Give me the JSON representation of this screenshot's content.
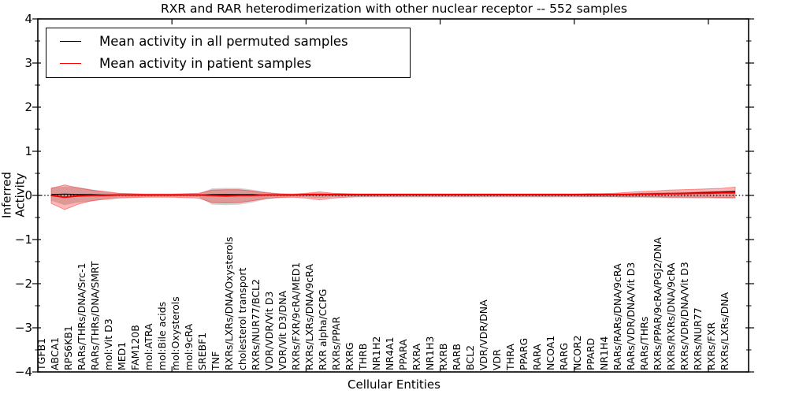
{
  "figure": {
    "title": "RXR and RAR heterodimerization with other nuclear receptor -- 552 samples",
    "xlabel": "Cellular Entities",
    "ylabel": "Inferred Activity"
  },
  "legend": {
    "items": [
      {
        "label": "Mean activity in all permuted samples",
        "color": "#000000"
      },
      {
        "label": "Mean activity in patient samples",
        "color": "#ff0000"
      }
    ]
  },
  "chart_data": {
    "type": "line",
    "title": "RXR and RAR heterodimerization with other nuclear receptor -- 552 samples",
    "xlabel": "Cellular Entities",
    "ylabel": "Inferred Activity",
    "ylim": [
      -4,
      4
    ],
    "yticks": [
      4,
      3,
      2,
      1,
      0,
      -1,
      -2,
      -3,
      -4
    ],
    "ytick_labels": [
      "4",
      "3",
      "2",
      "1",
      "0",
      "−1",
      "−2",
      "−3",
      "−4"
    ],
    "x_major_ticks": [
      10,
      20,
      30,
      40,
      50
    ],
    "grid": false,
    "legend_position": "upper left",
    "zero_line": {
      "style": "dotted",
      "color": "#000000",
      "y": 0
    },
    "categories": [
      "TGFB1",
      "ABCA1",
      "RPS6KB1",
      "RARs/THRs/DNA/Src-1",
      "RARs/THRs/DNA/SMRT",
      "mol:Vit D3",
      "MED1",
      "FAM120B",
      "mol:ATRA",
      "mol:Bile acids",
      "mol:Oxysterols",
      "mol:9cRA",
      "SREBF1",
      "TNF",
      "RXRs/LXRs/DNA/Oxysterols",
      "cholesterol transport",
      "RXRs/NUR77/BCL2",
      "VDR/VDR/Vit D3",
      "VDR/Vit D3/DNA",
      "RXRs/FXR/9cRA/MED1",
      "RXRs/LXRs/DNA/9cRA",
      "RXR alpha/CCPG",
      "RXRs/PPAR",
      "RXRG",
      "THRB",
      "NR1H2",
      "NR4A1",
      "PPARA",
      "RXRA",
      "NR1H3",
      "RXRB",
      "RARB",
      "BCL2",
      "VDR/VDR/DNA",
      "VDR",
      "THRA",
      "PPARG",
      "RARA",
      "NCOA1",
      "RARG",
      "NCOR2",
      "PPARD",
      "NR1H4",
      "RARs/RARs/DNA/9cRA",
      "RARs/VDR/DNA/Vit D3",
      "RARs/THRs",
      "RXRs/PPAR/9cRA/PGJ2/DNA",
      "RXRs/RXRs/DNA/9cRA",
      "RXRs/VDR/DNA/Vit D3",
      "RXRs/NUR77",
      "RXRs/FXR",
      "RXRs/LXRs/DNA"
    ],
    "series": [
      {
        "name": "Mean activity in all permuted samples",
        "color": "#000000",
        "values": [
          0.02,
          0.03,
          0.02,
          0.02,
          0.01,
          0.01,
          0.01,
          0.01,
          0.01,
          0.01,
          0.01,
          0.01,
          0.02,
          0.02,
          0.02,
          0.02,
          0.01,
          0.01,
          0.01,
          0.01,
          0.01,
          0.01,
          0.01,
          0.01,
          0.01,
          0.01,
          0.01,
          0.01,
          0.01,
          0.01,
          0.01,
          0.01,
          0.01,
          0.01,
          0.01,
          0.01,
          0.01,
          0.01,
          0.01,
          0.01,
          0.01,
          0.01,
          0.02,
          0.02,
          0.03,
          0.04,
          0.04,
          0.05,
          0.06,
          0.07,
          0.08,
          0.09
        ]
      },
      {
        "name": "Mean activity in patient samples",
        "color": "#ff0000",
        "values": [
          0.0,
          -0.04,
          -0.01,
          0.0,
          0.0,
          0.01,
          0.01,
          0.01,
          0.01,
          0.01,
          0.01,
          0.01,
          0.0,
          -0.01,
          0.0,
          0.0,
          0.01,
          0.01,
          0.01,
          0.02,
          0.02,
          0.02,
          0.02,
          0.02,
          0.02,
          0.02,
          0.02,
          0.02,
          0.02,
          0.02,
          0.02,
          0.02,
          0.02,
          0.02,
          0.02,
          0.02,
          0.02,
          0.02,
          0.02,
          0.02,
          0.02,
          0.02,
          0.02,
          0.02,
          0.03,
          0.03,
          0.04,
          0.04,
          0.05,
          0.05,
          0.06,
          0.06
        ]
      }
    ],
    "bands": [
      {
        "name": "permuted samples spread",
        "color": "#808080",
        "opacity": 0.35,
        "upper": [
          0.18,
          0.2,
          0.19,
          0.14,
          0.08,
          0.05,
          0.04,
          0.03,
          0.03,
          0.03,
          0.03,
          0.04,
          0.16,
          0.17,
          0.17,
          0.13,
          0.08,
          0.04,
          0.03,
          0.04,
          0.06,
          0.04,
          0.03,
          0.02,
          0.02,
          0.02,
          0.02,
          0.02,
          0.02,
          0.02,
          0.02,
          0.02,
          0.02,
          0.02,
          0.02,
          0.02,
          0.02,
          0.02,
          0.02,
          0.02,
          0.03,
          0.03,
          0.04,
          0.05,
          0.06,
          0.07,
          0.08,
          0.08,
          0.09,
          0.09,
          0.1,
          0.11
        ],
        "lower": [
          -0.12,
          -0.22,
          -0.16,
          -0.14,
          -0.08,
          -0.05,
          -0.04,
          -0.03,
          -0.03,
          -0.03,
          -0.03,
          -0.04,
          -0.21,
          -0.22,
          -0.21,
          -0.16,
          -0.09,
          -0.05,
          -0.03,
          -0.04,
          -0.06,
          -0.04,
          -0.03,
          -0.02,
          -0.02,
          -0.02,
          -0.02,
          -0.02,
          -0.02,
          -0.02,
          -0.02,
          -0.02,
          -0.02,
          -0.02,
          -0.02,
          -0.02,
          -0.02,
          -0.02,
          -0.02,
          -0.02,
          -0.03,
          -0.03,
          -0.04,
          -0.05,
          -0.05,
          -0.06,
          -0.06,
          -0.06,
          -0.07,
          -0.07,
          -0.07,
          -0.08
        ]
      },
      {
        "name": "patient samples spread",
        "color": "#ff0000",
        "opacity": 0.28,
        "upper": [
          0.16,
          0.24,
          0.17,
          0.12,
          0.09,
          0.05,
          0.04,
          0.03,
          0.03,
          0.03,
          0.04,
          0.05,
          0.12,
          0.13,
          0.13,
          0.1,
          0.06,
          0.04,
          0.03,
          0.05,
          0.08,
          0.05,
          0.04,
          0.03,
          0.03,
          0.03,
          0.03,
          0.03,
          0.03,
          0.03,
          0.03,
          0.03,
          0.03,
          0.03,
          0.03,
          0.03,
          0.03,
          0.03,
          0.03,
          0.03,
          0.04,
          0.04,
          0.05,
          0.07,
          0.09,
          0.1,
          0.12,
          0.13,
          0.14,
          0.15,
          0.16,
          0.19
        ],
        "lower": [
          -0.18,
          -0.32,
          -0.2,
          -0.12,
          -0.09,
          -0.06,
          -0.05,
          -0.04,
          -0.04,
          -0.04,
          -0.05,
          -0.06,
          -0.16,
          -0.17,
          -0.16,
          -0.12,
          -0.07,
          -0.05,
          -0.04,
          -0.06,
          -0.1,
          -0.06,
          -0.04,
          -0.03,
          -0.03,
          -0.03,
          -0.03,
          -0.03,
          -0.03,
          -0.03,
          -0.03,
          -0.03,
          -0.03,
          -0.03,
          -0.03,
          -0.03,
          -0.03,
          -0.03,
          -0.03,
          -0.03,
          -0.03,
          -0.03,
          -0.03,
          -0.03,
          -0.03,
          -0.03,
          -0.04,
          -0.04,
          -0.04,
          -0.04,
          -0.05,
          -0.05
        ]
      }
    ]
  }
}
